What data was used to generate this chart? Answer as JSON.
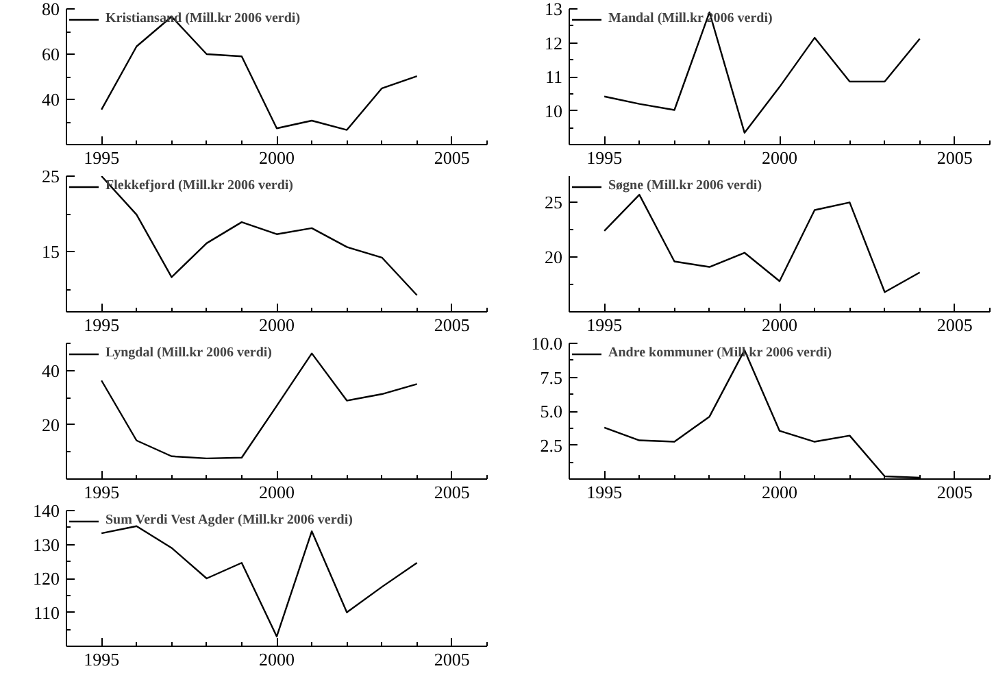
{
  "chart_data": [
    {
      "type": "line",
      "x": [
        1995,
        1996,
        1997,
        1998,
        1999,
        2000,
        2001,
        2002,
        2003,
        2004
      ],
      "xlim": [
        1994,
        2006
      ],
      "xticks": [
        1995,
        2000,
        2005
      ],
      "ylim": [
        20,
        80
      ],
      "yticks": [
        40,
        60,
        80
      ],
      "legend": "top left",
      "grid": false,
      "series": [
        {
          "name": "Kristiansand (Mill.kr 2006 verdi)",
          "color": "#000000",
          "values": [
            35.5,
            63.4,
            76.6,
            60,
            59,
            27.2,
            30.6,
            26.5,
            44.9,
            50.3
          ]
        }
      ]
    },
    {
      "type": "line",
      "x": [
        1995,
        1996,
        1997,
        1998,
        1999,
        2000,
        2001,
        2002,
        2003,
        2004
      ],
      "xlim": [
        1994,
        2006
      ],
      "xticks": [
        1995,
        2000,
        2005
      ],
      "ylim": [
        9,
        13
      ],
      "yticks": [
        10,
        11,
        12,
        13
      ],
      "legend": "top left",
      "grid": false,
      "series": [
        {
          "name": "Mandal (Mill.kr 2006 verdi)",
          "color": "#000000",
          "values": [
            10.42,
            10.2,
            10.02,
            12.9,
            9.35,
            10.7,
            12.15,
            10.86,
            10.86,
            12.12
          ]
        }
      ]
    },
    {
      "type": "line",
      "x": [
        1995,
        1996,
        1997,
        1998,
        1999,
        2000,
        2001,
        2002,
        2003,
        2004
      ],
      "xlim": [
        1994,
        2006
      ],
      "xticks": [
        1995,
        2000,
        2005
      ],
      "ylim": [
        7,
        25
      ],
      "yticks": [
        15,
        25
      ],
      "legend": "top left",
      "grid": false,
      "series": [
        {
          "name": "Flekkefjord (Mill.kr 2006 verdi)",
          "color": "#000000",
          "values": [
            25,
            19.9,
            11.6,
            16.1,
            18.9,
            17.3,
            18.1,
            15.6,
            14.2,
            9.2
          ]
        }
      ]
    },
    {
      "type": "line",
      "x": [
        1995,
        1996,
        1997,
        1998,
        1999,
        2000,
        2001,
        2002,
        2003,
        2004
      ],
      "xlim": [
        1994,
        2006
      ],
      "xticks": [
        1995,
        2000,
        2005
      ],
      "ylim": [
        15,
        27.4
      ],
      "yticks": [
        20,
        25
      ],
      "legend": "top left",
      "grid": false,
      "series": [
        {
          "name": "Søgne (Mill.kr 2006 verdi)",
          "color": "#000000",
          "values": [
            22.4,
            25.7,
            19.6,
            19.1,
            20.4,
            17.8,
            24.3,
            25.0,
            16.8,
            18.6
          ]
        }
      ]
    },
    {
      "type": "line",
      "x": [
        1995,
        1996,
        1997,
        1998,
        1999,
        2000,
        2001,
        2002,
        2003,
        2004
      ],
      "xlim": [
        1994,
        2006
      ],
      "xticks": [
        1995,
        2000,
        2005
      ],
      "ylim": [
        0,
        50
      ],
      "yticks": [
        20,
        40
      ],
      "legend": "top left",
      "grid": false,
      "series": [
        {
          "name": "Lyngdal (Mill.kr 2006 verdi)",
          "color": "#000000",
          "values": [
            36.3,
            14.2,
            8.4,
            7.6,
            7.9,
            27,
            46.3,
            28.9,
            31.3,
            35
          ]
        }
      ]
    },
    {
      "type": "line",
      "x": [
        1995,
        1996,
        1997,
        1998,
        1999,
        2000,
        2001,
        2002,
        2003,
        2004
      ],
      "xlim": [
        1994,
        2006
      ],
      "xticks": [
        1995,
        2000,
        2005
      ],
      "ylim": [
        0,
        10
      ],
      "yticks": [
        {
          "value": 2.5,
          "label": "2.5"
        },
        {
          "value": 5,
          "label": "5.0"
        },
        {
          "value": 7.5,
          "label": "7.5"
        },
        {
          "value": 10,
          "label": "10.0"
        }
      ],
      "legend": "top left",
      "grid": false,
      "series": [
        {
          "name": "Andre kommuner (Mill.kr 2006 verdi)",
          "color": "#000000",
          "values": [
            3.8,
            2.85,
            2.75,
            4.6,
            9.5,
            3.55,
            2.75,
            3.2,
            0.2,
            0.1
          ]
        }
      ]
    },
    {
      "type": "line",
      "x": [
        1995,
        1996,
        1997,
        1998,
        1999,
        2000,
        2001,
        2002,
        2003,
        2004
      ],
      "xlim": [
        1994,
        2006
      ],
      "xticks": [
        1995,
        2000,
        2005
      ],
      "ylim": [
        100,
        140
      ],
      "yticks": [
        110,
        120,
        130,
        140
      ],
      "legend": "top left",
      "grid": false,
      "series": [
        {
          "name": "Sum Verdi Vest Agder (Mill.kr 2006 verdi)",
          "color": "#000000",
          "values": [
            133.3,
            135.4,
            129,
            120,
            124.6,
            102.9,
            133.9,
            110,
            117.5,
            124.6
          ]
        }
      ]
    }
  ]
}
